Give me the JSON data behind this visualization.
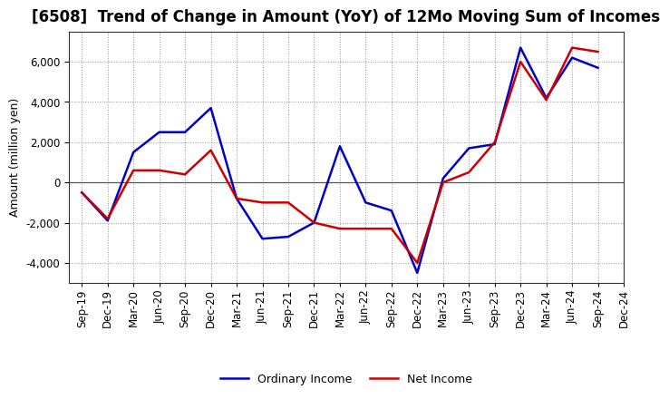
{
  "title": "[6508]  Trend of Change in Amount (YoY) of 12Mo Moving Sum of Incomes",
  "ylabel": "Amount (million yen)",
  "x_labels": [
    "Sep-19",
    "Dec-19",
    "Mar-20",
    "Jun-20",
    "Sep-20",
    "Dec-20",
    "Mar-21",
    "Jun-21",
    "Sep-21",
    "Dec-21",
    "Mar-22",
    "Jun-22",
    "Sep-22",
    "Dec-22",
    "Mar-23",
    "Jun-23",
    "Sep-23",
    "Dec-23",
    "Mar-24",
    "Jun-24",
    "Sep-24",
    "Dec-24"
  ],
  "ordinary_income": [
    -500,
    -1900,
    1500,
    2500,
    2500,
    3700,
    -800,
    -2800,
    -2700,
    -2000,
    1800,
    -1000,
    -1400,
    -4500,
    200,
    1700,
    1900,
    6700,
    4200,
    6200,
    5700,
    null
  ],
  "net_income": [
    -500,
    -1800,
    600,
    600,
    400,
    1600,
    -800,
    -1000,
    -1000,
    -2000,
    -2300,
    -2300,
    -2300,
    -4000,
    0,
    500,
    2000,
    6000,
    4100,
    6700,
    6500,
    null
  ],
  "ordinary_income_color": "#0000cc",
  "net_income_color": "#cc0000",
  "background_color": "#ffffff",
  "grid_color": "#999999",
  "ylim": [
    -5000,
    7500
  ],
  "yticks": [
    -4000,
    -2000,
    0,
    2000,
    4000,
    6000
  ],
  "legend_labels": [
    "Ordinary Income",
    "Net Income"
  ],
  "title_fontsize": 12,
  "axis_fontsize": 9,
  "tick_fontsize": 8.5
}
